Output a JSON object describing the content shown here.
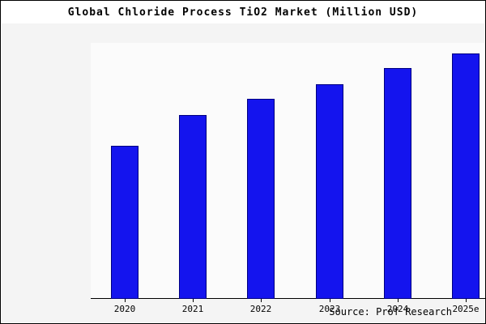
{
  "chart_data": {
    "type": "bar",
    "title": "Global Chloride Process TiO2 Market (Million USD)",
    "categories": [
      "2020",
      "2021",
      "2022",
      "2023",
      "2024",
      "2025e"
    ],
    "values": [
      62.5,
      75,
      81.5,
      87.5,
      94,
      100
    ],
    "xlabel": "",
    "ylabel": "",
    "ylim": [
      0,
      104
    ],
    "grid": false,
    "legend": false,
    "bar_color": "#1414EE",
    "bar_border_color": "#000080",
    "axis_color": "#000000",
    "plot_bg": "#fbfbfb",
    "page_bg": "#f4f4f4"
  },
  "footer": {
    "source": "Source: Prof Research"
  }
}
